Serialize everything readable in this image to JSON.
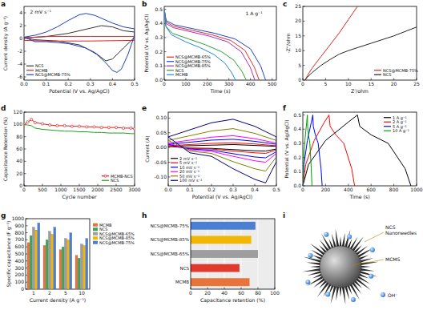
{
  "chart_data": [
    {
      "type": "line",
      "title": "a",
      "x_label": "Potential (V vs. Ag/AgCl)",
      "y_label": "Current density (A g⁻¹)",
      "annotations": [
        "2 mV s⁻¹"
      ],
      "xlim": [
        0,
        0.5
      ],
      "xticks": [
        {
          "value": 0,
          "label": "0.0"
        },
        0.1,
        0.2,
        0.3,
        0.4,
        0.5
      ],
      "ylim": [
        -6.5,
        5
      ],
      "yticks": [
        -6,
        -4,
        -2,
        0,
        2,
        4
      ],
      "legend": "lower left",
      "series": [
        {
          "name": "NCS",
          "color": "#333333",
          "x": [
            0,
            0.1,
            0.2,
            0.3,
            0.35,
            0.4,
            0.45,
            0.5,
            0.5,
            0.45,
            0.4,
            0.37,
            0.32,
            0.25,
            0.15,
            0.05,
            0
          ],
          "values": [
            0.1,
            0.3,
            0.8,
            1.6,
            2.0,
            1.8,
            1.2,
            1.0,
            0.2,
            -1.5,
            -3.2,
            -3.5,
            -2.2,
            -1.0,
            -0.4,
            -0.2,
            0.1
          ]
        },
        {
          "name": "MCMB",
          "color": "#e02020",
          "x": [
            0,
            0.1,
            0.3,
            0.5,
            0.5,
            0.3,
            0.1,
            0,
            0
          ],
          "values": [
            0.1,
            0.3,
            0.3,
            0.3,
            -0.3,
            -0.4,
            -0.4,
            -0.3,
            0.1
          ]
        },
        {
          "name": "NCS@MCMB-75%",
          "color": "#1f3fbf",
          "x": [
            0,
            0.05,
            0.1,
            0.15,
            0.2,
            0.25,
            0.28,
            0.32,
            0.36,
            0.4,
            0.45,
            0.5,
            0.5,
            0.47,
            0.44,
            0.42,
            0.4,
            0.37,
            0.33,
            0.28,
            0.2,
            0.1,
            0.05,
            0
          ],
          "values": [
            0.2,
            0.5,
            1.0,
            1.8,
            2.8,
            3.7,
            3.9,
            3.6,
            3.0,
            2.4,
            1.8,
            1.5,
            0.5,
            -2.5,
            -4.8,
            -5.3,
            -5.0,
            -3.8,
            -2.5,
            -1.5,
            -0.8,
            -0.5,
            -0.5,
            0.2
          ]
        }
      ]
    },
    {
      "type": "line",
      "title": "b",
      "x_label": "Time (s)",
      "y_label": "Potential (V vs. Ag/AgCl)",
      "annotations": [
        "1 A g⁻¹"
      ],
      "xlim": [
        0,
        520
      ],
      "xticks": [
        0,
        100,
        200,
        300,
        400,
        500
      ],
      "ylim": [
        0,
        0.52
      ],
      "yticks": [
        {
          "value": 0,
          "label": "0.0"
        },
        0.1,
        0.2,
        0.3,
        0.4,
        0.5
      ],
      "legend": "lower left",
      "series": [
        {
          "name": "NCS@MCMB-65%",
          "color": "#e0302a",
          "x": [
            0,
            9,
            44,
            132,
            220,
            308,
            374,
            418,
            440
          ],
          "values": [
            0.5,
            0.41,
            0.38,
            0.35,
            0.32,
            0.28,
            0.21,
            0.09,
            0
          ]
        },
        {
          "name": "NCS@MCMB-75%",
          "color": "#2040d0",
          "x": [
            0,
            9,
            47,
            141,
            235,
            329,
            400,
            447,
            470
          ],
          "values": [
            0.5,
            0.42,
            0.39,
            0.36,
            0.33,
            0.29,
            0.22,
            0.1,
            0
          ]
        },
        {
          "name": "NCS@MCMB-85%",
          "color": "#b030b0",
          "x": [
            0,
            8,
            42,
            126,
            210,
            294,
            357,
            399,
            420
          ],
          "values": [
            0.5,
            0.4,
            0.37,
            0.34,
            0.31,
            0.27,
            0.2,
            0.09,
            0
          ]
        },
        {
          "name": "NCS",
          "color": "#2aa02a",
          "x": [
            0,
            8,
            38,
            114,
            190,
            266,
            323,
            361,
            380
          ],
          "values": [
            0.5,
            0.38,
            0.33,
            0.29,
            0.25,
            0.2,
            0.14,
            0.06,
            0
          ]
        },
        {
          "name": "MCMB",
          "color": "#1e88e5",
          "x": [
            0,
            7,
            33,
            99,
            165,
            231,
            281,
            314,
            330
          ],
          "values": [
            0.5,
            0.38,
            0.32,
            0.27,
            0.23,
            0.18,
            0.12,
            0.05,
            0
          ]
        }
      ]
    },
    {
      "type": "line",
      "title": "c",
      "x_label": "Z'/ohm",
      "y_label": "-Z''/ohm",
      "xlim": [
        0,
        25
      ],
      "xticks": [
        0,
        5,
        10,
        15,
        20,
        25
      ],
      "ylim": [
        0,
        25
      ],
      "yticks": [
        0,
        5,
        10,
        15,
        20,
        25
      ],
      "legend": "lower right",
      "series": [
        {
          "name": "NCS@MCMB-75%",
          "color": "#e02020",
          "x": [
            0.5,
            1,
            2,
            4,
            6,
            8,
            10,
            12
          ],
          "values": [
            0,
            1.5,
            4,
            8,
            12,
            16,
            20.5,
            25
          ]
        },
        {
          "name": "NCS",
          "color": "#222222",
          "x": [
            0.5,
            1,
            2,
            4,
            6,
            8,
            10,
            12,
            15,
            20,
            25
          ],
          "values": [
            0,
            1,
            2.5,
            5,
            7,
            8.8,
            10,
            11,
            12.5,
            15,
            18
          ]
        }
      ]
    },
    {
      "type": "line",
      "title": "d",
      "x_label": "Cycle number",
      "y_label": "Capacitance Retention (%)",
      "xlim": [
        0,
        3000
      ],
      "xticks": [
        0,
        500,
        1000,
        1500,
        2000,
        2500,
        3000
      ],
      "ylim": [
        0,
        120
      ],
      "yticks": [
        0,
        20,
        40,
        60,
        80,
        100,
        120
      ],
      "legend": "lower right",
      "series": [
        {
          "name": "MCMB-NCS",
          "color": "#e02020",
          "marker": "circle",
          "x": [
            0,
            100,
            200,
            300,
            500,
            700,
            900,
            1100,
            1300,
            1500,
            1700,
            1900,
            2100,
            2300,
            2500,
            2700,
            2900,
            3000
          ],
          "values": [
            100,
            104,
            108,
            103,
            101,
            99,
            98,
            98,
            97,
            97,
            96,
            96,
            95,
            95,
            95,
            94,
            94,
            93
          ]
        },
        {
          "name": "NCS",
          "color": "#20a020",
          "x": [
            0,
            100,
            200,
            300,
            500,
            700,
            900,
            1100,
            1300,
            1500,
            1700,
            1900,
            2100,
            2300,
            2500,
            2700,
            2900,
            3000
          ],
          "values": [
            100,
            99,
            98,
            94,
            92,
            91,
            90,
            89,
            89,
            88,
            88,
            87,
            87,
            86,
            86,
            86,
            85,
            85
          ]
        }
      ]
    },
    {
      "type": "line",
      "title": "e",
      "x_label": "Potential (V vs. Ag/AgCl)",
      "y_label": "Current (A)",
      "xlim": [
        0,
        0.5
      ],
      "xticks": [
        {
          "value": 0,
          "label": "0.0"
        },
        0.1,
        0.2,
        0.3,
        0.4,
        0.5
      ],
      "ylim": [
        -0.13,
        0.12
      ],
      "yticks": [
        {
          "value": -0.1,
          "label": "-0.10"
        },
        -0.05,
        {
          "value": 0,
          "label": "0.00"
        },
        0.05,
        {
          "value": 0.1,
          "label": "0.10"
        }
      ],
      "legend": "lower left",
      "series": [
        {
          "name": "2 mV s⁻¹",
          "color": "#000000",
          "x": [
            0,
            0.1,
            0.2,
            0.3,
            0.4,
            0.5,
            0.5,
            0.45,
            0.4,
            0.3,
            0.2,
            0.1,
            0
          ],
          "values": [
            0.004,
            0.006,
            0.008,
            0.01,
            0.007,
            0.004,
            -0.005,
            -0.012,
            -0.011,
            -0.007,
            -0.003,
            -0.002,
            0.004
          ]
        },
        {
          "name": "5 mV s⁻¹",
          "color": "#ff0000",
          "x": [
            0,
            0.1,
            0.2,
            0.3,
            0.4,
            0.5,
            0.5,
            0.45,
            0.4,
            0.3,
            0.2,
            0.1,
            0
          ],
          "values": [
            0.006,
            0.01,
            0.014,
            0.016,
            0.012,
            0.006,
            -0.008,
            -0.02,
            -0.018,
            -0.012,
            -0.005,
            -0.003,
            0.006
          ]
        },
        {
          "name": "10 mV s⁻¹",
          "color": "#0000ff",
          "x": [
            0,
            0.1,
            0.2,
            0.3,
            0.4,
            0.5,
            0.5,
            0.45,
            0.4,
            0.3,
            0.2,
            0.1,
            0
          ],
          "values": [
            0.011,
            0.018,
            0.025,
            0.028,
            0.021,
            0.011,
            -0.014,
            -0.035,
            -0.032,
            -0.021,
            -0.009,
            -0.005,
            0.011
          ]
        },
        {
          "name": "20 mV s⁻¹",
          "color": "#ff00ff",
          "x": [
            0,
            0.1,
            0.2,
            0.3,
            0.4,
            0.5,
            0.5,
            0.45,
            0.4,
            0.3,
            0.2,
            0.1,
            0
          ],
          "values": [
            0.015,
            0.025,
            0.035,
            0.04,
            0.03,
            0.015,
            -0.02,
            -0.05,
            -0.045,
            -0.03,
            -0.013,
            -0.008,
            0.015
          ]
        },
        {
          "name": "50 mV s⁻¹",
          "color": "#808000",
          "x": [
            0,
            0.1,
            0.2,
            0.3,
            0.4,
            0.5,
            0.5,
            0.45,
            0.4,
            0.3,
            0.2,
            0.1,
            0
          ],
          "values": [
            0.024,
            0.04,
            0.056,
            0.064,
            0.048,
            0.024,
            -0.032,
            -0.08,
            -0.072,
            -0.048,
            -0.02,
            -0.012,
            0.024
          ]
        },
        {
          "name": "100 mV s⁻¹",
          "color": "#000080",
          "x": [
            0,
            0.1,
            0.2,
            0.3,
            0.4,
            0.5,
            0.5,
            0.45,
            0.4,
            0.3,
            0.2,
            0.1,
            0
          ],
          "values": [
            0.036,
            0.06,
            0.084,
            0.096,
            0.072,
            0.036,
            -0.048,
            -0.12,
            -0.108,
            -0.072,
            -0.03,
            -0.018,
            0.036
          ]
        }
      ]
    },
    {
      "type": "line",
      "title": "f",
      "x_label": "Time (s)",
      "y_label": "Potential (V vs. Ag/AgCl)",
      "xlim": [
        0,
        1000
      ],
      "xticks": [
        0,
        200,
        400,
        600,
        800,
        1000
      ],
      "ylim": [
        0,
        0.52
      ],
      "yticks": [
        {
          "value": 0,
          "label": "0.0"
        },
        0.1,
        0.2,
        0.3,
        0.4,
        0.5
      ],
      "legend": "upper right",
      "series": [
        {
          "name": "1 A g⁻¹",
          "color": "#000000",
          "x": [
            0,
            50,
            200,
            400,
            480,
            500,
            600,
            750,
            900,
            950
          ],
          "values": [
            0,
            0.15,
            0.32,
            0.45,
            0.5,
            0.42,
            0.36,
            0.3,
            0.12,
            0
          ]
        },
        {
          "name": "2 A g⁻¹",
          "color": "#ff0000",
          "x": [
            0,
            25,
            100,
            190,
            230,
            240,
            290,
            360,
            430,
            455
          ],
          "values": [
            0,
            0.15,
            0.32,
            0.45,
            0.5,
            0.42,
            0.36,
            0.3,
            0.12,
            0
          ]
        },
        {
          "name": "5 A g⁻¹",
          "color": "#0000ff",
          "x": [
            0,
            10,
            40,
            75,
            88,
            92,
            110,
            135,
            160,
            170
          ],
          "values": [
            0,
            0.15,
            0.32,
            0.45,
            0.5,
            0.42,
            0.36,
            0.3,
            0.12,
            0
          ]
        },
        {
          "name": "10 A g⁻¹",
          "color": "#00a000",
          "x": [
            0,
            5,
            18,
            34,
            40,
            42,
            50,
            62,
            74,
            80
          ],
          "values": [
            0,
            0.15,
            0.32,
            0.45,
            0.5,
            0.42,
            0.36,
            0.3,
            0.12,
            0
          ]
        }
      ]
    },
    {
      "type": "bar",
      "title": "g",
      "x_label": "Current density (A g⁻¹)",
      "y_label": "Specific capacitance (F g⁻¹)",
      "categories": [
        "1",
        "2",
        "5",
        "10"
      ],
      "ylim": [
        0,
        1000
      ],
      "yticks": [
        0,
        100,
        200,
        300,
        400,
        500,
        600,
        700,
        800,
        900,
        1000
      ],
      "legend": "right",
      "series": [
        {
          "name": "MCMB",
          "color": "#e8743b",
          "values": [
            660,
            620,
            560,
            480
          ]
        },
        {
          "name": "NCS",
          "color": "#3aa655",
          "values": [
            760,
            700,
            600,
            440
          ]
        },
        {
          "name": "NCS@MCMB-65%",
          "color": "#9e9e9e",
          "values": [
            880,
            820,
            720,
            640
          ]
        },
        {
          "name": "NCS@MCMB-85%",
          "color": "#f2b705",
          "values": [
            840,
            780,
            700,
            620
          ]
        },
        {
          "name": "NCS@MCMB-75%",
          "color": "#4a7fd4",
          "values": [
            940,
            880,
            800,
            720
          ]
        }
      ]
    },
    {
      "type": "bar",
      "orientation": "horizontal",
      "title": "h",
      "x_label": "Capacitance retention (%)",
      "grid": true,
      "categories": [
        "NCS@MCMB-75%",
        "NCS@MCMB-85%",
        "NCS@MCMB-65%",
        "NCS",
        "MCMB"
      ],
      "values": [
        77,
        72,
        80,
        58,
        70
      ],
      "colors": [
        "#4a7fd4",
        "#f2b705",
        "#9e9e9e",
        "#e03a2f",
        "#e8743b"
      ],
      "xlim": [
        0,
        100
      ],
      "xticks": [
        0,
        20,
        40,
        60,
        80,
        100
      ]
    }
  ],
  "diagram": {
    "title": "i",
    "needle_label": [
      "NCS",
      "Nanoneedles"
    ],
    "core_label": "MCMS",
    "ion_label": "OH⁻"
  }
}
